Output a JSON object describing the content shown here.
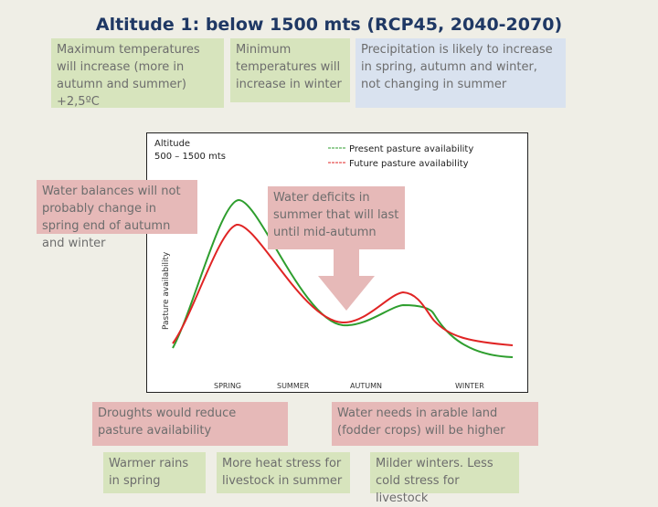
{
  "title": "Altitude 1: below 1500 mts (RCP45, 2040-2070)",
  "boxes": {
    "max_temp": "Maximum temperatures will increase (more in autumn and summer) +2,5ºC",
    "min_temp": "Minimum temperatures will increase in winter",
    "precip": "Precipitation is likely to increase in spring, autumn and winter, not changing in summer",
    "water_balance": "Water balances will not probably change in spring end of autumn and winter",
    "water_deficit": "Water deficits in summer that will last until mid-autumn",
    "droughts": "Droughts would reduce pasture availability",
    "arable": "Water needs in arable land (fodder crops) will be higher",
    "warmer_rains": "Warmer rains in spring",
    "heat_stress": "More heat stress for livestock in summer",
    "milder_winters": "Milder winters. Less cold stress for livestock"
  },
  "chart_data": {
    "type": "line",
    "title_lines": [
      "Altitude",
      "500 – 1500 mts"
    ],
    "ylabel": "Pasture availability",
    "x": [
      "SPRING",
      "SUMMER",
      "AUTUMN",
      "WINTER"
    ],
    "series": [
      {
        "name": "Present pasture availability",
        "color": "#2e9e2e"
      },
      {
        "name": "Future pasture availability",
        "color": "#e02424"
      }
    ]
  },
  "colors": {
    "present": "#2e9e2e",
    "future": "#e02424",
    "title": "#1f3864"
  }
}
